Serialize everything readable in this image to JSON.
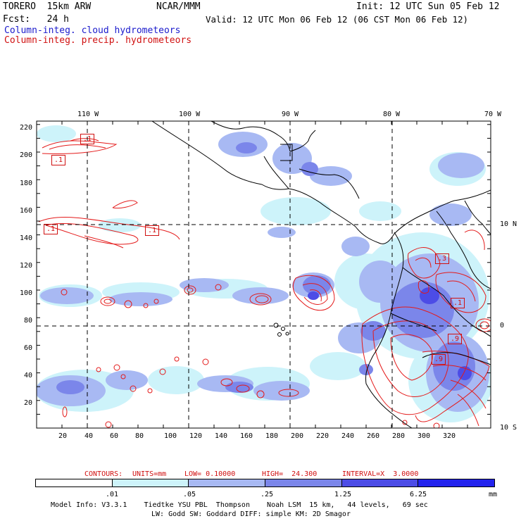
{
  "header": {
    "model": "TORERO  15km ARW",
    "org": "NCAR/MMM",
    "init": "Init: 12 UTC Sun 05 Feb 12",
    "fcst": "Fcst:   24 h",
    "valid": "Valid: 12 UTC Mon 06 Feb 12 (06 CST Mon 06 Feb 12)",
    "field_cloud": "Column-integ. cloud hydrometeors",
    "field_precip": "Column-integ. precip. hydrometeors"
  },
  "colors": {
    "cloud_text": "#1a1acc",
    "precip_text": "#d01010",
    "coast": "#000000"
  },
  "map": {
    "lon_labels": [
      "110 W",
      "100 W",
      "90 W",
      "80 W",
      "70 W"
    ],
    "lat_labels": [
      "10 N",
      "0",
      "10 S"
    ],
    "y_ticks": [
      "220",
      "200",
      "180",
      "160",
      "140",
      "120",
      "100",
      "80",
      "60",
      "40",
      "20"
    ],
    "x_ticks": [
      "20",
      "40",
      "60",
      "80",
      "100",
      "120",
      "140",
      "160",
      "180",
      "200",
      "220",
      "240",
      "260",
      "280",
      "300",
      "320"
    ],
    "contour_labels": [
      ".1",
      ".1",
      ".1",
      ".1",
      ".3",
      ".1",
      ".9",
      ".9"
    ]
  },
  "contours_info": {
    "prefix": "CONTOURS:",
    "units": "UNITS=mm",
    "low": "LOW= 0.10000",
    "high": "HIGH=  24.300",
    "interval": "INTERVAL=X  3.0000"
  },
  "colorbar": {
    "labels": [
      ".01",
      ".05",
      ".25",
      "1.25",
      "6.25"
    ],
    "unit": "mm",
    "colors": [
      "#ffffff",
      "#cdf3fa",
      "#a8b9f3",
      "#7b86ea",
      "#4c4ce6",
      "#2323ee"
    ]
  },
  "footer": {
    "line1": "Model Info: V3.3.1    Tiedtke YSU PBL  Thompson    Noah LSM  15 km,   44 levels,   69 sec",
    "line2": "LW: Godd SW: Goddard DIFF: simple KM: 2D Smagor"
  }
}
